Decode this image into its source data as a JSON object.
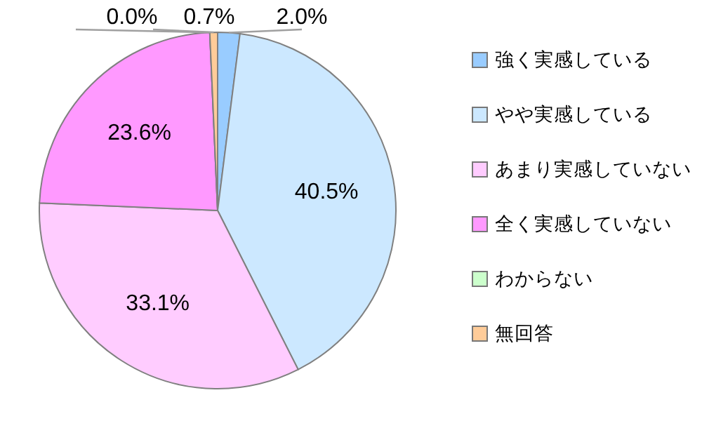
{
  "chart_data": {
    "type": "pie",
    "categories": [
      "強く実感している",
      "やや実感している",
      "あまり実感していない",
      "全く実感していない",
      "わからない",
      "無回答"
    ],
    "values": [
      2.0,
      40.5,
      33.1,
      23.6,
      0.0,
      0.7
    ],
    "colors": [
      "#99ccff",
      "#cce8ff",
      "#ffccff",
      "#ff99ff",
      "#ccffcc",
      "#ffcc99"
    ],
    "value_labels": [
      "2.0%",
      "40.5%",
      "33.1%",
      "23.6%",
      "0.0%",
      "0.7%"
    ],
    "legend": "right"
  }
}
